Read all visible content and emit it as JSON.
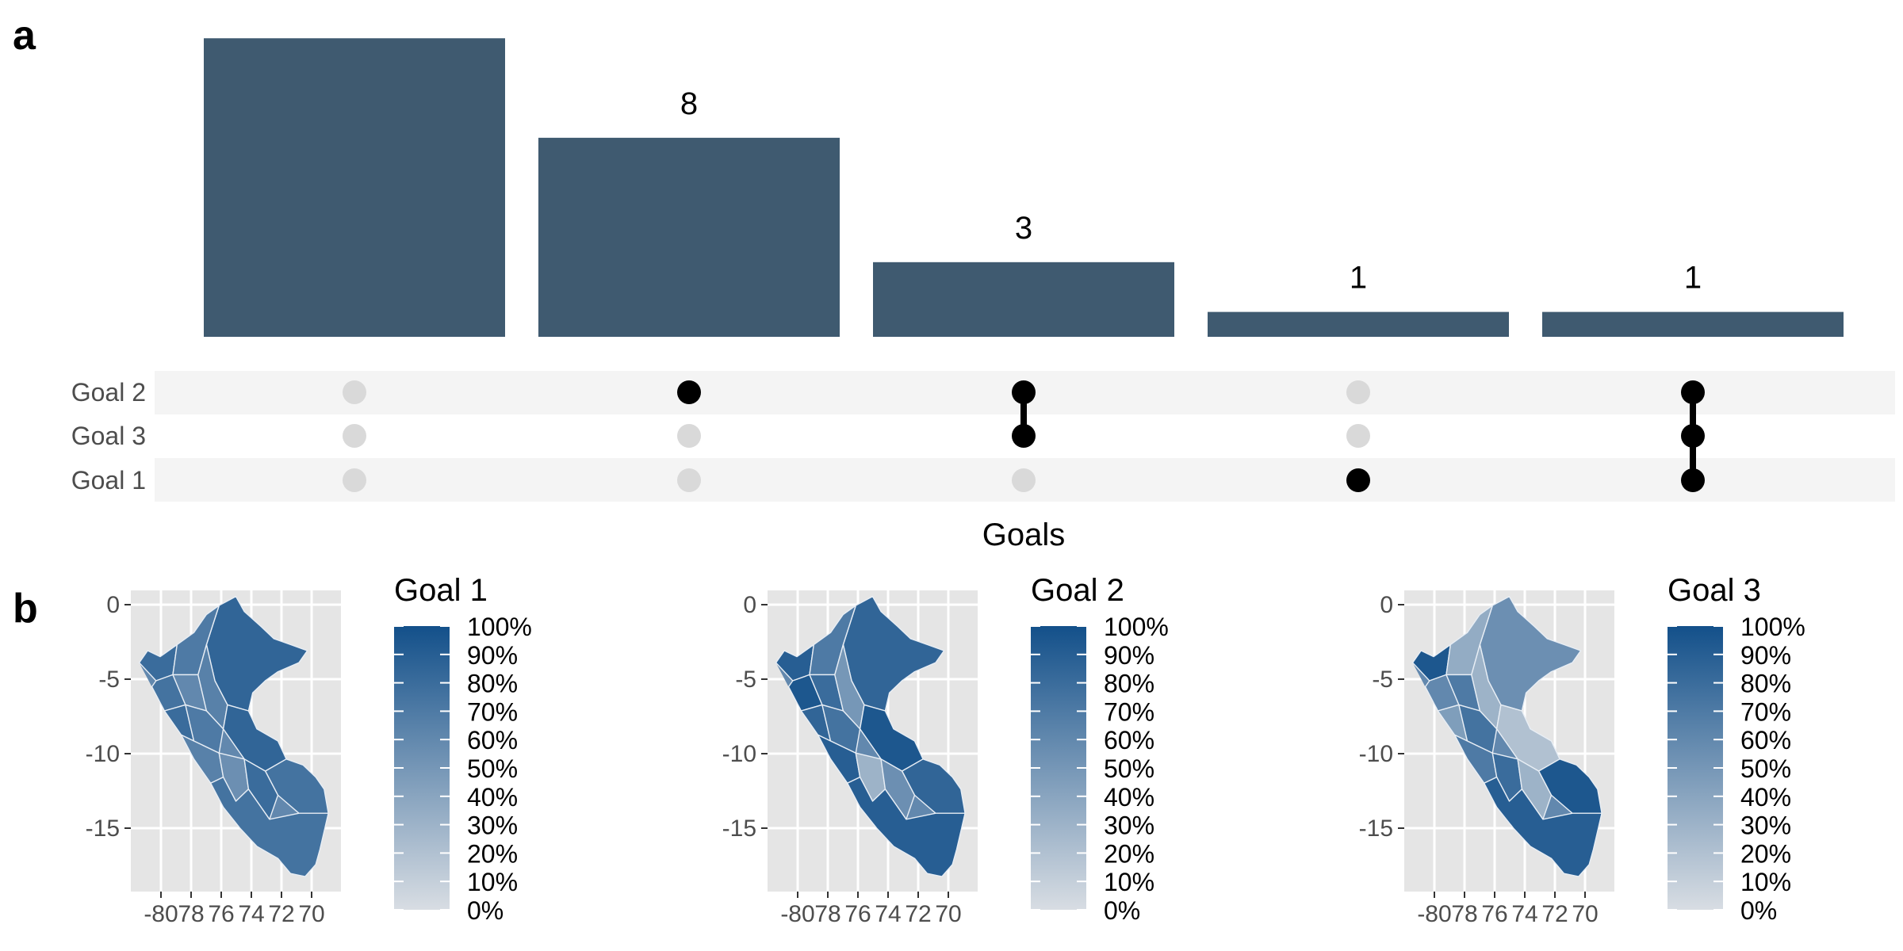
{
  "panel_labels": [
    "a",
    "b"
  ],
  "colors": {
    "bar": "#3f5a70",
    "dot_active": "#000000",
    "dot_inactive": "#d9d9d9",
    "stripe": "#f4f4f4",
    "map_panel": "#e5e5e5",
    "scale_low": "#d8dde3",
    "scale_high": "#13508a"
  },
  "chart_data": [
    {
      "type": "bar",
      "subtype": "upset",
      "xlabel": "Goals",
      "sets": [
        "Goal 2",
        "Goal 3",
        "Goal 1"
      ],
      "bars": [
        {
          "value": 12,
          "label": "",
          "members": []
        },
        {
          "value": 8,
          "label": "8",
          "members": [
            "Goal 2"
          ]
        },
        {
          "value": 3,
          "label": "3",
          "members": [
            "Goal 2",
            "Goal 3"
          ]
        },
        {
          "value": 1,
          "label": "1",
          "members": [
            "Goal 1"
          ]
        },
        {
          "value": 1,
          "label": "1",
          "members": [
            "Goal 2",
            "Goal 3",
            "Goal 1"
          ]
        }
      ],
      "ylim": [
        0,
        12.2
      ]
    },
    {
      "type": "heatmap",
      "subtype": "choropleth",
      "title": "Goal 1",
      "x_ticks": [
        "-80",
        "78",
        "76",
        "74",
        "72",
        "70"
      ],
      "y_ticks": [
        "0",
        "-5",
        "-10",
        "-15"
      ],
      "legend_ticks": [
        "100%",
        "90%",
        "80%",
        "70%",
        "60%",
        "50%",
        "40%",
        "30%",
        "20%",
        "10%",
        "0%"
      ],
      "regions": [
        0.85,
        0.8,
        0.7,
        0.75,
        0.6,
        0.65,
        0.8,
        0.7,
        0.85,
        0.75,
        0.65,
        0.55,
        0.8,
        0.75
      ]
    },
    {
      "type": "heatmap",
      "subtype": "choropleth",
      "title": "Goal 2",
      "x_ticks": [
        "-80",
        "78",
        "76",
        "74",
        "72",
        "70"
      ],
      "y_ticks": [
        "0",
        "-5",
        "-10",
        "-15"
      ],
      "legend_ticks": [
        "100%",
        "90%",
        "80%",
        "70%",
        "60%",
        "50%",
        "40%",
        "30%",
        "20%",
        "10%",
        "0%"
      ],
      "regions": [
        0.85,
        0.9,
        0.7,
        0.95,
        0.8,
        0.5,
        0.85,
        0.75,
        0.95,
        0.85,
        0.9,
        0.3,
        0.55,
        0.9
      ]
    },
    {
      "type": "heatmap",
      "subtype": "choropleth",
      "title": "Goal 3",
      "x_ticks": [
        "-80",
        "78",
        "76",
        "74",
        "72",
        "70"
      ],
      "y_ticks": [
        "0",
        "-5",
        "-10",
        "-15"
      ],
      "legend_ticks": [
        "100%",
        "90%",
        "80%",
        "70%",
        "60%",
        "50%",
        "40%",
        "30%",
        "20%",
        "10%",
        "0%"
      ],
      "regions": [
        0.55,
        0.95,
        0.35,
        0.6,
        0.7,
        0.3,
        0.45,
        0.75,
        0.2,
        0.95,
        0.7,
        0.8,
        0.3,
        0.9
      ]
    }
  ]
}
